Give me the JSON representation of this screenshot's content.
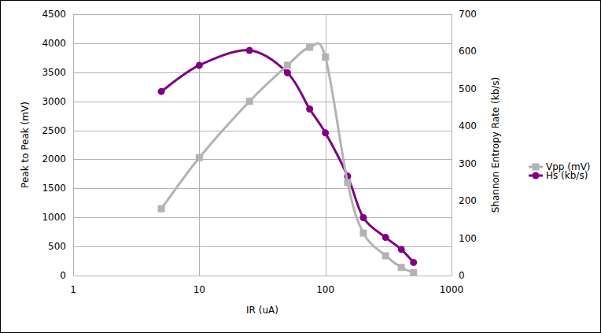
{
  "chart_data": {
    "type": "line",
    "x_label": "IR (uA)",
    "y_label": "Peak to Peak (mV)",
    "y2_label": "Shannon Entropy Rate (kb/s)",
    "x": [
      5,
      10,
      25,
      50,
      75,
      100,
      150,
      200,
      300,
      400,
      500
    ],
    "series": [
      {
        "name": "Vpp (mV)",
        "color": "#b3b3b3",
        "marker": "square",
        "values": [
          1150,
          2030,
          3000,
          3620,
          3930,
          3760,
          1600,
          730,
          340,
          140,
          50
        ]
      },
      {
        "name": "Hs (kb/s)",
        "color": "#800080",
        "marker": "circle",
        "axis": "y2",
        "values": [
          493,
          563,
          603,
          543,
          446,
          382,
          266,
          155,
          102,
          70,
          35
        ]
      }
    ],
    "xlim": [
      1,
      1000
    ],
    "xticks": [
      1,
      10,
      100,
      1000
    ],
    "ylim": [
      0,
      4500
    ],
    "yticks": [
      0,
      500,
      1000,
      1500,
      2000,
      2500,
      3000,
      3500,
      4000,
      4500
    ],
    "y2lim": [
      0,
      700
    ],
    "y2ticks": [
      0,
      100,
      200,
      300,
      400,
      500,
      600,
      700
    ],
    "log": "x",
    "grid": true,
    "legend": "right",
    "line_style": "smooth"
  }
}
